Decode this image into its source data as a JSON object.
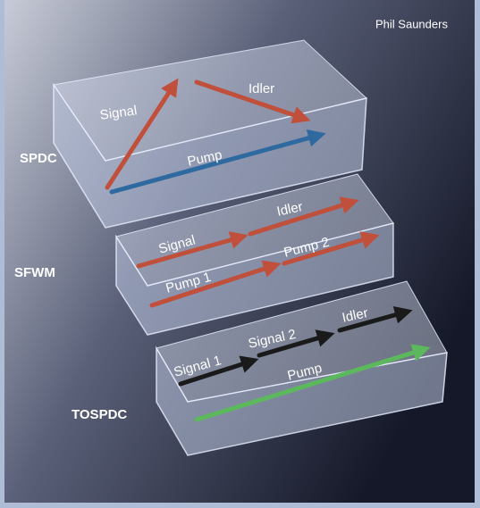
{
  "credit": "Phil Saunders",
  "panels": [
    {
      "label": "SPDC",
      "arrows": [
        "Signal",
        "Idler",
        "Pump"
      ]
    },
    {
      "label": "SFWM",
      "arrows": [
        "Signal",
        "Idler",
        "Pump 1",
        "Pump 2"
      ]
    },
    {
      "label": "TOSPDC",
      "arrows": [
        "Signal 1",
        "Signal 2",
        "Idler",
        "Pump"
      ]
    }
  ]
}
